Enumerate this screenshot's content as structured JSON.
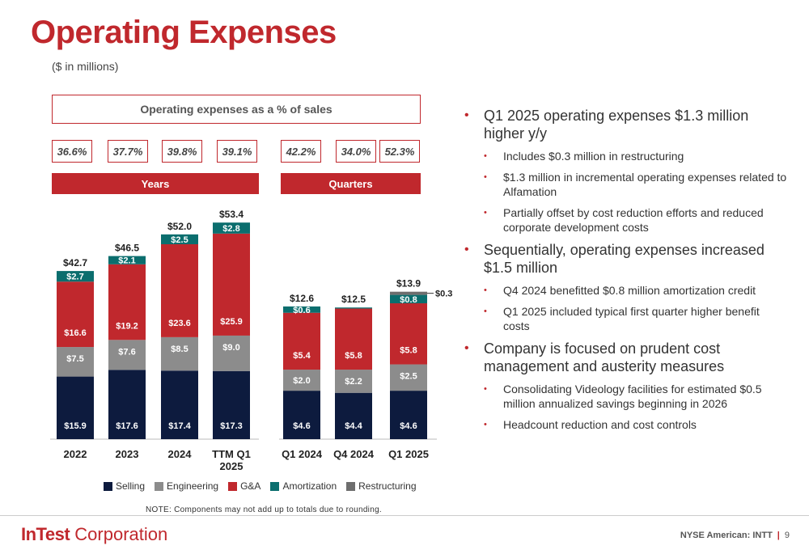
{
  "title": "Operating Expenses",
  "subtitle": "($ in millions)",
  "pct_header": "Operating expenses as a % of sales",
  "pcts": [
    "36.6%",
    "37.7%",
    "39.8%",
    "39.1%",
    "42.2%",
    "34.0%",
    "52.3%"
  ],
  "years_label": "Years",
  "quarters_label": "Quarters",
  "colors": {
    "accent": "#c0282d",
    "selling": "#0d1b3e",
    "engineering": "#8c8c8c",
    "ga": "#c0282d",
    "amortization": "#0b6e6e",
    "restructuring": "#6e6e6e"
  },
  "chart_data": {
    "type": "bar",
    "stacked": true,
    "categories": [
      "2022",
      "2023",
      "2024",
      "TTM Q1 2025",
      "Q1 2024",
      "Q4 2024",
      "Q1 2025"
    ],
    "series": [
      {
        "name": "Selling",
        "values": [
          15.9,
          17.6,
          17.4,
          17.3,
          4.6,
          4.4,
          4.6
        ],
        "labels": [
          "$15.9",
          "$17.6",
          "$17.4",
          "$17.3",
          "$4.6",
          "$4.4",
          "$4.6"
        ]
      },
      {
        "name": "Engineering",
        "values": [
          7.5,
          7.6,
          8.5,
          9.0,
          2.0,
          2.2,
          2.5
        ],
        "labels": [
          "$7.5",
          "$7.6",
          "$8.5",
          "$9.0",
          "$2.0",
          "$2.2",
          "$2.5"
        ]
      },
      {
        "name": "G&A",
        "values": [
          16.6,
          19.2,
          23.6,
          25.9,
          5.4,
          5.8,
          5.8
        ],
        "labels": [
          "$16.6",
          "$19.2",
          "$23.6",
          "$25.9",
          "$5.4",
          "$5.8",
          "$5.8"
        ]
      },
      {
        "name": "Amortization",
        "values": [
          2.7,
          2.1,
          2.5,
          2.8,
          0.6,
          0.1,
          0.8
        ],
        "labels": [
          "$2.7",
          "$2.1",
          "$2.5",
          "$2.8",
          "$0.6",
          "",
          "$0.8"
        ]
      },
      {
        "name": "Restructuring",
        "values": [
          0,
          0,
          0,
          0,
          0,
          0,
          0.3
        ],
        "labels": [
          "",
          "",
          "",
          "",
          "",
          "",
          "$0.3"
        ]
      }
    ],
    "totals": [
      "$42.7",
      "$46.5",
      "$52.0",
      "$53.4",
      "$12.6",
      "$12.5",
      "$13.9"
    ],
    "panels": [
      {
        "label": "Years",
        "categories": [
          "2022",
          "2023",
          "2024",
          "TTM Q1 2025"
        ],
        "ylim": [
          0,
          55
        ]
      },
      {
        "label": "Quarters",
        "categories": [
          "Q1 2024",
          "Q4 2024",
          "Q1 2025"
        ],
        "ylim": [
          0,
          14.2
        ]
      }
    ],
    "legend_position": "bottom"
  },
  "legend": [
    {
      "label": "Selling",
      "color": "#0d1b3e"
    },
    {
      "label": "Engineering",
      "color": "#8c8c8c"
    },
    {
      "label": "G&A",
      "color": "#c0282d"
    },
    {
      "label": "Amortization",
      "color": "#0b6e6e"
    },
    {
      "label": "Restructuring",
      "color": "#6e6e6e"
    }
  ],
  "note": "NOTE: Components may not add up to totals due to rounding.",
  "bullets": [
    {
      "level": 1,
      "text": "Q1 2025 operating expenses $1.3 million higher y/y"
    },
    {
      "level": 2,
      "text": "Includes $0.3 million in restructuring"
    },
    {
      "level": 2,
      "text": "$1.3 million in incremental operating expenses related to Alfamation"
    },
    {
      "level": 2,
      "text": "Partially offset by cost reduction efforts and reduced corporate development costs"
    },
    {
      "level": 1,
      "text": "Sequentially, operating expenses increased $1.5 million"
    },
    {
      "level": 2,
      "text": "Q4 2024 benefitted $0.8 million amortization credit"
    },
    {
      "level": 2,
      "text": "Q1 2025 included typical first quarter higher benefit costs"
    },
    {
      "level": 1,
      "text": "Company is focused on prudent cost management and austerity measures"
    },
    {
      "level": 2,
      "text": "Consolidating Videology facilities for estimated $0.5 million annualized savings beginning in 2026"
    },
    {
      "level": 2,
      "text": "Headcount reduction and cost controls"
    }
  ],
  "footer": {
    "logo_bold": "InTest",
    "logo_rest": " Corporation",
    "exchange": "NYSE American: INTT",
    "separator": "|",
    "page": "9"
  }
}
